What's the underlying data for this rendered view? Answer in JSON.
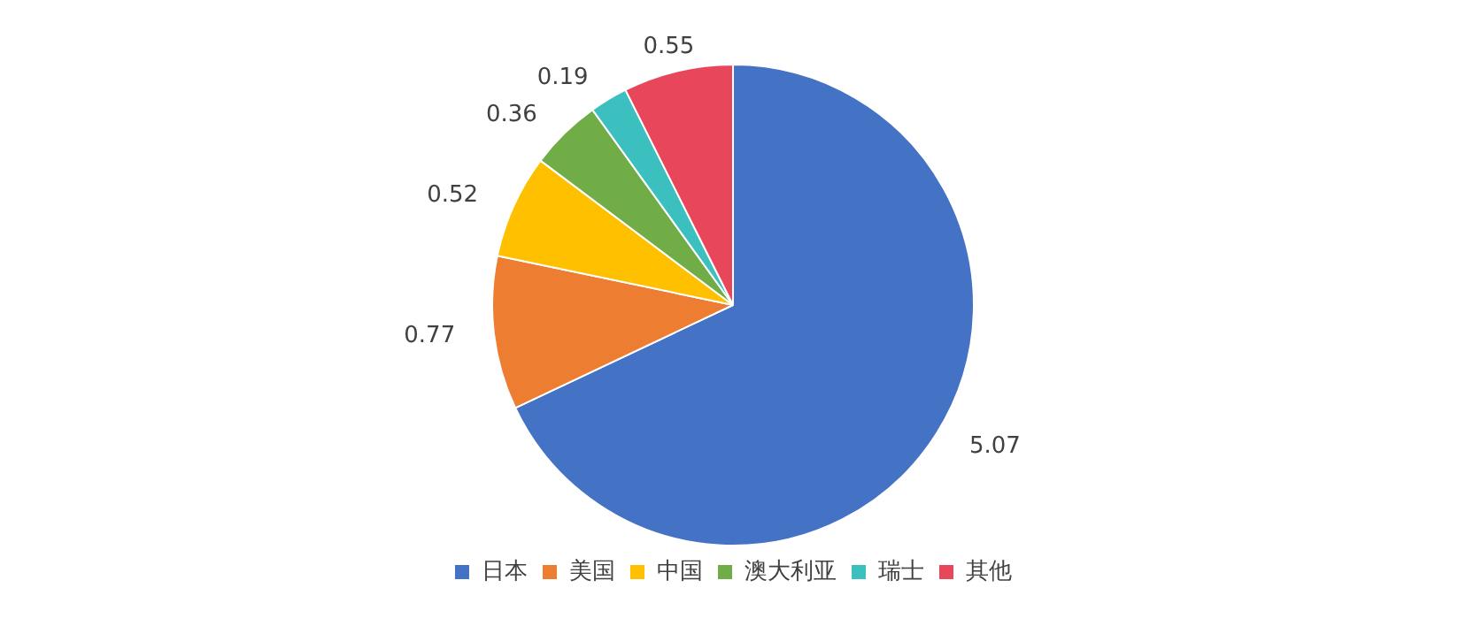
{
  "chart_data": {
    "type": "pie",
    "categories": [
      "日本",
      "美国",
      "中国",
      "澳大利亚",
      "瑞士",
      "其他"
    ],
    "values": [
      5.07,
      0.77,
      0.52,
      0.36,
      0.19,
      0.55
    ],
    "colors": [
      "#4472c4",
      "#ed7d31",
      "#ffc000",
      "#70ad47",
      "#3cbfbf",
      "#e8475b"
    ],
    "data_labels": true,
    "legend": "bottom"
  }
}
